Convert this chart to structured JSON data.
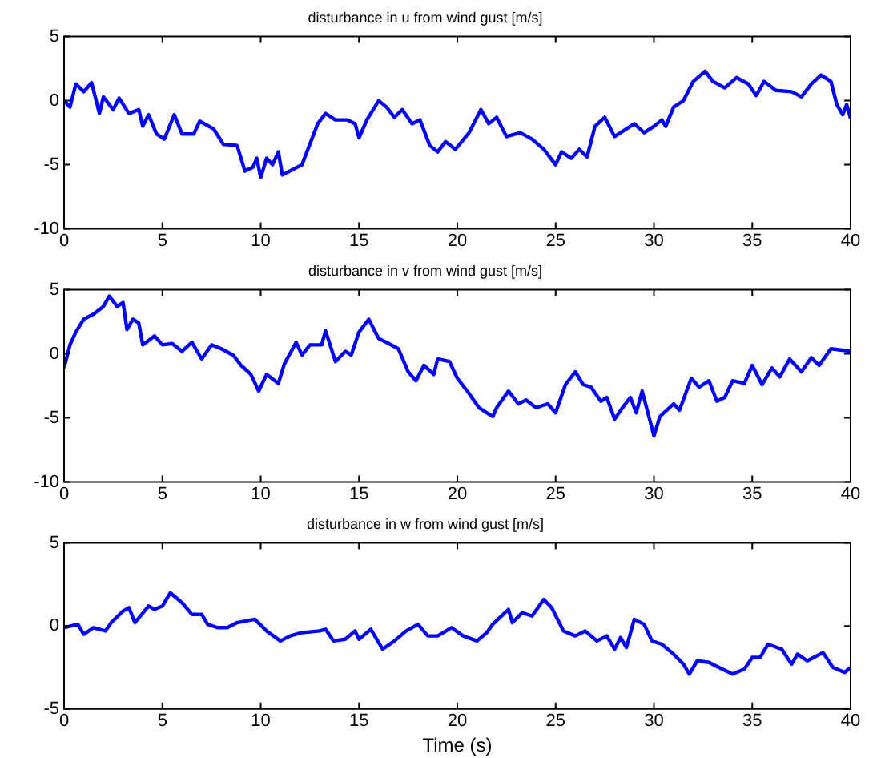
{
  "chart_data": [
    {
      "type": "line",
      "title": "disturbance in u from wind gust [m/s]",
      "x": [
        0,
        0.3,
        0.6,
        1.0,
        1.4,
        1.8,
        2.0,
        2.5,
        2.8,
        3.3,
        3.8,
        4.0,
        4.3,
        4.7,
        5.1,
        5.6,
        6.0,
        6.6,
        6.9,
        7.6,
        8.1,
        8.8,
        9.2,
        9.6,
        9.8,
        10.0,
        10.3,
        10.6,
        10.9,
        11.1,
        11.6,
        12.1,
        12.4,
        12.9,
        13.3,
        13.8,
        14.4,
        14.8,
        15.0,
        15.4,
        16.0,
        16.4,
        16.8,
        17.2,
        17.7,
        18.1,
        18.6,
        19.0,
        19.4,
        19.9,
        20.6,
        21.2,
        21.6,
        22.0,
        22.5,
        23.2,
        23.8,
        24.4,
        25.0,
        25.3,
        25.8,
        26.2,
        26.6,
        27.0,
        27.5,
        28.0,
        28.6,
        29.0,
        29.5,
        30.0,
        30.4,
        30.6,
        31.0,
        31.5,
        32.0,
        32.6,
        33.0,
        33.6,
        34.2,
        34.8,
        35.2,
        35.6,
        36.2,
        37.0,
        37.5,
        38.0,
        38.5,
        39.0,
        39.3,
        39.6,
        39.8,
        40.0
      ],
      "series": [
        {
          "color": "#0000ff",
          "values": [
            0.0,
            -0.5,
            1.3,
            0.7,
            1.4,
            -1,
            0.3,
            -0.7,
            0.2,
            -1,
            -0.7,
            -2,
            -1.1,
            -2.6,
            -3,
            -1.1,
            -2.6,
            -2.6,
            -1.6,
            -2.2,
            -3.4,
            -3.5,
            -5.5,
            -5.2,
            -4.5,
            -6,
            -4.5,
            -5,
            -4,
            -5.8,
            -5.4,
            -5,
            -3.8,
            -1.8,
            -1,
            -1.5,
            -1.5,
            -1.8,
            -2.9,
            -1.5,
            0,
            -0.5,
            -1.3,
            -0.7,
            -1.8,
            -1.5,
            -3.5,
            -4,
            -3.2,
            -3.8,
            -2.5,
            -0.7,
            -1.8,
            -1.3,
            -2.8,
            -2.5,
            -3,
            -3.8,
            -5,
            -4,
            -4.5,
            -3.8,
            -4.4,
            -2,
            -1.3,
            -2.8,
            -2.2,
            -1.8,
            -2.5,
            -2,
            -1.5,
            -2,
            -0.5,
            0,
            1.5,
            2.3,
            1.5,
            1,
            1.8,
            1.3,
            0.4,
            1.5,
            0.8,
            0.7,
            0.3,
            1.3,
            2,
            1.5,
            -0.3,
            -1.1,
            -0.3,
            -1.4
          ]
        }
      ],
      "xlim": [
        0,
        40
      ],
      "xticks": [
        0,
        5,
        10,
        15,
        20,
        25,
        30,
        35,
        40
      ],
      "ylim": [
        -10,
        5
      ],
      "yticks": [
        -10,
        -5,
        0,
        5
      ],
      "grid": false,
      "marker": "none",
      "line_style": "solid"
    },
    {
      "type": "line",
      "title": "disturbance in v from wind gust [m/s]",
      "x": [
        0,
        0.3,
        0.6,
        1.0,
        1.5,
        2.0,
        2.3,
        2.7,
        3.0,
        3.2,
        3.5,
        3.8,
        4.0,
        4.6,
        5.0,
        5.5,
        6.0,
        6.5,
        7.0,
        7.5,
        8.0,
        8.6,
        9.0,
        9.5,
        9.9,
        10.3,
        10.9,
        11.2,
        11.8,
        12.1,
        12.5,
        13.1,
        13.3,
        13.8,
        14.3,
        14.6,
        15.0,
        15.5,
        16.0,
        16.4,
        17.0,
        17.5,
        17.9,
        18.3,
        18.8,
        19.0,
        19.6,
        20.0,
        20.6,
        21.1,
        21.8,
        22.0,
        22.6,
        23.1,
        23.5,
        24.0,
        24.6,
        25.0,
        25.5,
        26.0,
        26.4,
        26.8,
        27.3,
        27.6,
        28.0,
        28.4,
        28.8,
        29.1,
        29.4,
        30.0,
        30.3,
        31.0,
        31.3,
        31.9,
        32.3,
        32.8,
        33.2,
        33.6,
        34.0,
        34.6,
        35.0,
        35.5,
        36.0,
        36.4,
        36.9,
        37.5,
        38.0,
        38.4,
        39.0,
        39.5,
        40.0
      ],
      "series": [
        {
          "color": "#0000ff",
          "values": [
            -1.1,
            0.7,
            1.7,
            2.7,
            3.1,
            3.7,
            4.5,
            3.7,
            4,
            1.9,
            2.7,
            2.4,
            0.7,
            1.4,
            0.7,
            0.8,
            0.2,
            0.9,
            -0.4,
            0.7,
            0.4,
            -0.1,
            -0.9,
            -1.6,
            -2.9,
            -1.6,
            -2.3,
            -0.8,
            0.9,
            -0.1,
            0.7,
            0.7,
            1.8,
            -0.6,
            0.2,
            -0.1,
            1.7,
            2.7,
            1.2,
            0.9,
            0.4,
            -1.4,
            -2.1,
            -0.9,
            -1.6,
            -0.4,
            -0.6,
            -1.9,
            -3.1,
            -4.2,
            -4.9,
            -4.2,
            -2.9,
            -3.9,
            -3.6,
            -4.2,
            -3.9,
            -4.6,
            -2.4,
            -1.4,
            -2.4,
            -2.6,
            -3.7,
            -3.4,
            -5.1,
            -4.2,
            -3.4,
            -4.6,
            -2.9,
            -6.4,
            -4.9,
            -3.9,
            -4.4,
            -1.9,
            -2.6,
            -2.1,
            -3.7,
            -3.4,
            -2.1,
            -2.3,
            -0.9,
            -2.4,
            -1.1,
            -1.8,
            -0.4,
            -1.4,
            -0.3,
            -0.9,
            0.4,
            0.3,
            0.2
          ]
        }
      ],
      "xlim": [
        0,
        40
      ],
      "xticks": [
        0,
        5,
        10,
        15,
        20,
        25,
        30,
        35,
        40
      ],
      "ylim": [
        -10,
        5
      ],
      "yticks": [
        -10,
        -5,
        0,
        5
      ],
      "grid": false,
      "marker": "none",
      "line_style": "solid"
    },
    {
      "type": "line",
      "title": "disturbance in w from wind gust [m/s]",
      "xlabel": "Time (s)",
      "x": [
        0,
        0.7,
        1.0,
        1.5,
        2.1,
        2.4,
        3.0,
        3.3,
        3.6,
        4.3,
        4.6,
        5.0,
        5.4,
        6.0,
        6.5,
        7.0,
        7.3,
        7.8,
        8.3,
        8.8,
        9.7,
        10.3,
        11.0,
        11.5,
        12.1,
        13.0,
        13.3,
        13.7,
        14.3,
        14.8,
        15.0,
        15.6,
        16.2,
        16.8,
        17.4,
        18.0,
        18.5,
        19.0,
        19.7,
        20.3,
        21.0,
        21.5,
        21.8,
        22.6,
        22.8,
        23.3,
        23.8,
        24.4,
        24.8,
        25.4,
        26.0,
        26.5,
        27.1,
        27.6,
        28.0,
        28.3,
        28.6,
        29.0,
        29.5,
        29.9,
        30.4,
        31.0,
        31.5,
        31.8,
        32.2,
        32.8,
        33.3,
        34.0,
        34.6,
        35.0,
        35.4,
        35.8,
        36.5,
        37.0,
        37.3,
        37.8,
        38.6,
        39.1,
        39.7,
        40.0
      ],
      "series": [
        {
          "color": "#0000ff",
          "values": [
            -0.1,
            0.1,
            -0.5,
            -0.1,
            -0.3,
            0.2,
            0.9,
            1.1,
            0.2,
            1.2,
            1,
            1.2,
            2,
            1.4,
            0.7,
            0.7,
            0.1,
            -0.1,
            -0.1,
            0.2,
            0.4,
            -0.3,
            -0.9,
            -0.6,
            -0.4,
            -0.3,
            -0.2,
            -0.9,
            -0.8,
            -0.3,
            -0.8,
            -0.2,
            -1.4,
            -0.9,
            -0.3,
            0.1,
            -0.6,
            -0.6,
            -0.1,
            -0.6,
            -0.9,
            -0.4,
            0.1,
            1,
            0.2,
            0.8,
            0.6,
            1.6,
            1.1,
            -0.3,
            -0.6,
            -0.3,
            -0.9,
            -0.6,
            -1.4,
            -0.7,
            -1.3,
            0.4,
            0.1,
            -0.9,
            -1.1,
            -1.7,
            -2.3,
            -2.9,
            -2.1,
            -2.2,
            -2.5,
            -2.9,
            -2.6,
            -1.9,
            -1.9,
            -1.1,
            -1.4,
            -2.3,
            -1.7,
            -2.1,
            -1.6,
            -2.5,
            -2.8,
            -2.5
          ]
        }
      ],
      "xlim": [
        0,
        40
      ],
      "xticks": [
        0,
        5,
        10,
        15,
        20,
        25,
        30,
        35,
        40
      ],
      "ylim": [
        -5,
        5
      ],
      "yticks": [
        -5,
        0,
        5
      ],
      "grid": false,
      "marker": "none",
      "line_style": "solid"
    }
  ]
}
